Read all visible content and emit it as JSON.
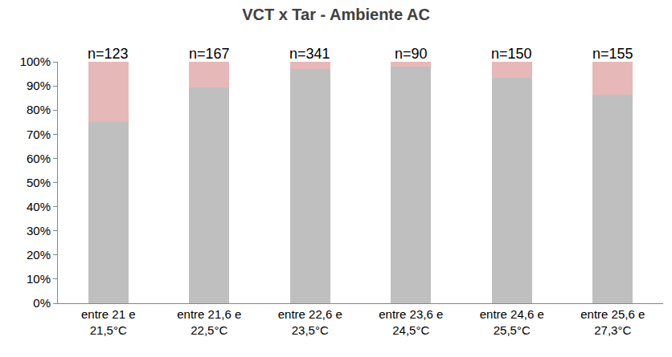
{
  "chart_data": {
    "type": "bar",
    "title": "VCT x Tar - Ambiente AC",
    "categories": [
      "entre 21 e 21,5°C",
      "entre 21,6 e 22,5°C",
      "entre 22,6 e 23,5°C",
      "entre 23,6 e 24,5°C",
      "entre 24,6 e 25,5°C",
      "entre 25,6 e 27,3°C"
    ],
    "annotations": [
      "n=123",
      "n=167",
      "n=341",
      "n=90",
      "n=150",
      "n=155"
    ],
    "series": [
      {
        "color": "#bfbfbf",
        "values": [
          75,
          89.5,
          97,
          98,
          93.5,
          86.5
        ]
      },
      {
        "color": "#e6b9b8",
        "values": [
          25,
          10.5,
          3,
          2,
          6.5,
          13.5
        ]
      }
    ],
    "stacked": true,
    "ylim": [
      0,
      100
    ],
    "yticks": [
      {
        "value": 0,
        "label": "0%"
      },
      {
        "value": 10,
        "label": "10%"
      },
      {
        "value": 20,
        "label": "20%"
      },
      {
        "value": 30,
        "label": "30%"
      },
      {
        "value": 40,
        "label": "40%"
      },
      {
        "value": 50,
        "label": "50%"
      },
      {
        "value": 60,
        "label": "60%"
      },
      {
        "value": 70,
        "label": "70%"
      },
      {
        "value": 80,
        "label": "80%"
      },
      {
        "value": 90,
        "label": "90%"
      },
      {
        "value": 100,
        "label": "100%"
      }
    ],
    "grid": false
  }
}
